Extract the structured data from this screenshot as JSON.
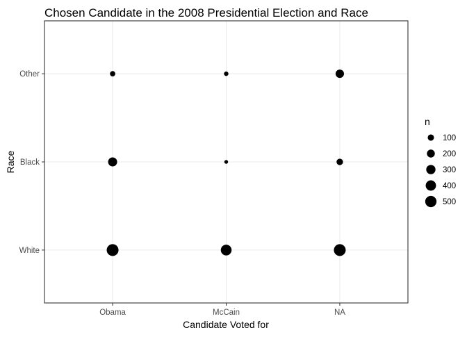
{
  "chart_data": {
    "type": "scatter",
    "title": "Chosen Candidate in the 2008 Presidential Election and Race",
    "xlabel": "Candidate Voted for",
    "ylabel": "Race",
    "x_categories": [
      "Obama",
      "McCain",
      "NA"
    ],
    "y_categories": [
      "White",
      "Black",
      "Other"
    ],
    "grid": true,
    "points": [
      {
        "x": "Obama",
        "y": "White",
        "n": 560
      },
      {
        "x": "McCain",
        "y": "White",
        "n": 440
      },
      {
        "x": "NA",
        "y": "White",
        "n": 560
      },
      {
        "x": "Obama",
        "y": "Black",
        "n": 280
      },
      {
        "x": "McCain",
        "y": "Black",
        "n": 15
      },
      {
        "x": "NA",
        "y": "Black",
        "n": 110
      },
      {
        "x": "Obama",
        "y": "Other",
        "n": 60
      },
      {
        "x": "McCain",
        "y": "Other",
        "n": 30
      },
      {
        "x": "NA",
        "y": "Other",
        "n": 230
      }
    ],
    "legend": {
      "title": "n",
      "position": "right",
      "values": [
        100,
        200,
        300,
        400,
        500
      ]
    }
  }
}
